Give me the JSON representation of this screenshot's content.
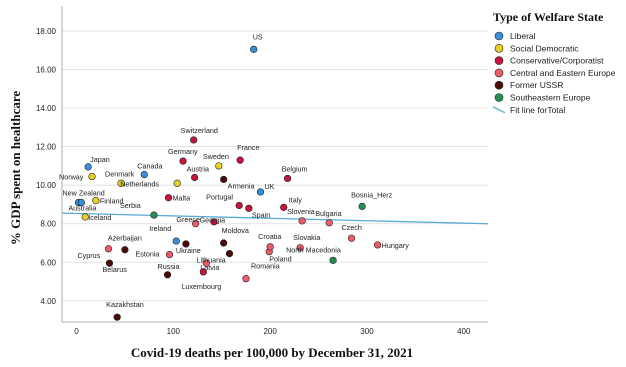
{
  "chart_data": {
    "type": "scatter",
    "xlabel": "Covid-19 deaths per 100,000 by December 31, 2021",
    "ylabel": "% GDP spent on healthcare",
    "xlim": [
      -15,
      425
    ],
    "ylim": [
      2.9,
      19.3
    ],
    "x_ticks": [
      0,
      100,
      200,
      300,
      400
    ],
    "y_ticks": [
      4.0,
      6.0,
      8.0,
      10.0,
      12.0,
      14.0,
      16.0,
      18.0
    ],
    "x_tick_labels": [
      "0",
      "100",
      "200",
      "300",
      "400"
    ],
    "y_tick_labels": [
      "4.00",
      "6.00",
      "8.00",
      "10.00",
      "12.00",
      "14.00",
      "16.00",
      "18.00"
    ],
    "grid": "horizontal",
    "legend": {
      "title": "Type of Welfare State",
      "placement": "top-right",
      "items": [
        {
          "label": "Liberal",
          "color": "#3a8fd9",
          "kind": "marker"
        },
        {
          "label": "Social Democratic",
          "color": "#e6d226",
          "kind": "marker"
        },
        {
          "label": "Conservative/Corporatist",
          "color": "#c8143c",
          "kind": "marker"
        },
        {
          "label": "Central and Eastern Europe",
          "color": "#ee5c6a",
          "kind": "marker"
        },
        {
          "label": "Former USSR",
          "color": "#4a0a0a",
          "kind": "marker"
        },
        {
          "label": "Southeastern Europe",
          "color": "#259052",
          "kind": "marker"
        },
        {
          "label": "Fit line forTotal",
          "color": "#56abd8",
          "kind": "line"
        }
      ]
    },
    "fit_line": {
      "name": "Fit line forTotal",
      "x": [
        -15,
        425
      ],
      "y": [
        8.55,
        8.0
      ],
      "color": "#56abd8"
    },
    "points": [
      {
        "label": "US",
        "x": 183,
        "y": 17.05,
        "group": 0
      },
      {
        "label": "Japan",
        "x": 12,
        "y": 10.95,
        "group": 0
      },
      {
        "label": "Canada",
        "x": 70,
        "y": 10.55,
        "group": 0
      },
      {
        "label": "New Zealand",
        "x": 2,
        "y": 9.1,
        "group": 0
      },
      {
        "label": "Australia",
        "x": 5,
        "y": 9.1,
        "group": 0
      },
      {
        "label": "Ireland",
        "x": 103,
        "y": 7.1,
        "group": 0
      },
      {
        "label": "UK",
        "x": 190,
        "y": 9.65,
        "group": 0
      },
      {
        "label": "Norway",
        "x": 16,
        "y": 10.45,
        "group": 1
      },
      {
        "label": "Denmark",
        "x": 46,
        "y": 10.1,
        "group": 1
      },
      {
        "label": "Finland",
        "x": 20,
        "y": 9.2,
        "group": 1
      },
      {
        "label": "Iceland",
        "x": 9,
        "y": 8.35,
        "group": 1
      },
      {
        "label": "Netherlands",
        "x": 104,
        "y": 10.1,
        "group": 1
      },
      {
        "label": "Sweden",
        "x": 147,
        "y": 11.0,
        "group": 1
      },
      {
        "label": "Switzerland",
        "x": 121,
        "y": 12.35,
        "group": 2
      },
      {
        "label": "Germany",
        "x": 110,
        "y": 11.25,
        "group": 2
      },
      {
        "label": "Austria",
        "x": 122,
        "y": 10.4,
        "group": 2
      },
      {
        "label": "France",
        "x": 169,
        "y": 11.3,
        "group": 2
      },
      {
        "label": "Belgium",
        "x": 218,
        "y": 10.35,
        "group": 2
      },
      {
        "label": "Malta",
        "x": 95,
        "y": 9.35,
        "group": 2
      },
      {
        "label": "Portugal",
        "x": 168,
        "y": 8.95,
        "group": 2
      },
      {
        "label": "Spain",
        "x": 178,
        "y": 8.8,
        "group": 2
      },
      {
        "label": "Italy",
        "x": 214,
        "y": 8.85,
        "group": 2
      },
      {
        "label": "Greece",
        "x": 142,
        "y": 8.1,
        "group": 2
      },
      {
        "label": "Luxembourg",
        "x": 131,
        "y": 5.5,
        "group": 2
      },
      {
        "label": "Cyprus",
        "x": 33,
        "y": 6.7,
        "group": 3
      },
      {
        "label": "Estonia",
        "x": 96,
        "y": 6.4,
        "group": 3
      },
      {
        "label": "Georgia",
        "x": 123,
        "y": 8.0,
        "group": 3
      },
      {
        "label": "Latvia",
        "x": 134,
        "y": 5.95,
        "group": 3
      },
      {
        "label": "Romania",
        "x": 175,
        "y": 5.15,
        "group": 3
      },
      {
        "label": "Poland",
        "x": 199,
        "y": 6.55,
        "group": 3
      },
      {
        "label": "Croatia",
        "x": 200,
        "y": 6.8,
        "group": 3
      },
      {
        "label": "Slovakia",
        "x": 231,
        "y": 6.75,
        "group": 3
      },
      {
        "label": "Bulgaria",
        "x": 261,
        "y": 8.05,
        "group": 3
      },
      {
        "label": "Czech",
        "x": 284,
        "y": 7.25,
        "group": 3
      },
      {
        "label": "Hungary",
        "x": 311,
        "y": 6.9,
        "group": 3
      },
      {
        "label": "Slovenia",
        "x": 233,
        "y": 8.15,
        "group": 3
      },
      {
        "label": "Armenia",
        "x": 152,
        "y": 10.3,
        "group": 4
      },
      {
        "label": "Belarus",
        "x": 34,
        "y": 5.95,
        "group": 4
      },
      {
        "label": "Azerbaijan",
        "x": 50,
        "y": 6.65,
        "group": 4
      },
      {
        "label": "Russia",
        "x": 94,
        "y": 5.35,
        "group": 4
      },
      {
        "label": "Ukraine",
        "x": 113,
        "y": 6.95,
        "group": 4
      },
      {
        "label": "Lithuania",
        "x": 158,
        "y": 6.45,
        "group": 4
      },
      {
        "label": "Moldova",
        "x": 152,
        "y": 7.0,
        "group": 4
      },
      {
        "label": "Kazakhstan",
        "x": 42,
        "y": 3.15,
        "group": 4
      },
      {
        "label": "Serbia",
        "x": 80,
        "y": 8.45,
        "group": 5
      },
      {
        "label": "North Macedonia",
        "x": 265,
        "y": 6.1,
        "group": 5
      },
      {
        "label": "Bosnia_Herz",
        "x": 295,
        "y": 8.9,
        "group": 5
      }
    ]
  }
}
